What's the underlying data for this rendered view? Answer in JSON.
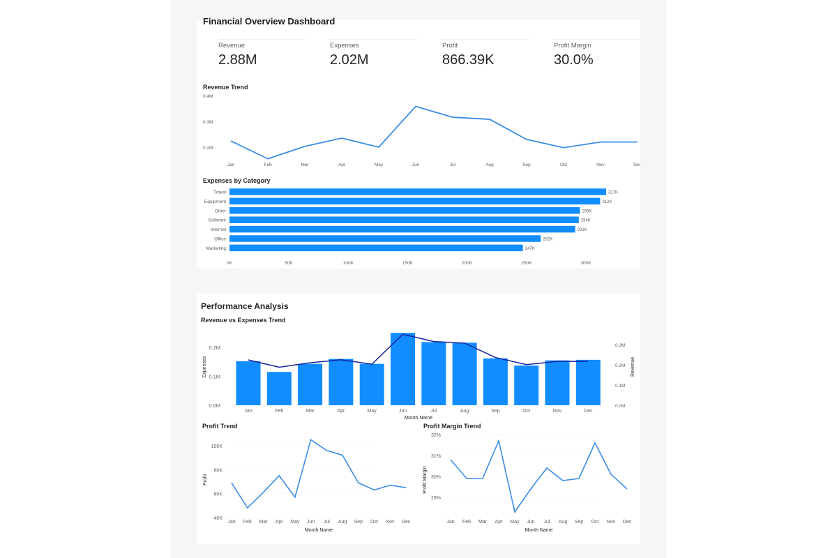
{
  "dashboard": {
    "title": "Financial Overview Dashboard"
  },
  "kpis": [
    {
      "label": "Revenue",
      "value": "2.88M"
    },
    {
      "label": "Expenses",
      "value": "2.02M"
    },
    {
      "label": "Profit",
      "value": "866.39K"
    },
    {
      "label": "Profit Margin",
      "value": "30.0%"
    }
  ],
  "performance": {
    "title": "Performance Analysis"
  },
  "colors": {
    "primary": "#118dff",
    "line": "#3a8de8",
    "dark_line": "#12239e",
    "grid": "#eeeeee"
  },
  "chart_data": [
    {
      "id": "revenue_trend",
      "type": "line",
      "title": "Revenue Trend",
      "x": [
        "Jan",
        "Feb",
        "Mar",
        "Apr",
        "May",
        "Jun",
        "Jul",
        "Aug",
        "Sep",
        "Oct",
        "Nov",
        "Dec"
      ],
      "series": [
        {
          "values": [
            224000,
            155000,
            203000,
            235000,
            200000,
            358000,
            316000,
            308000,
            230000,
            198000,
            220000,
            220000
          ]
        }
      ],
      "yticks": [
        "0.2M",
        "0.3M",
        "0.4M"
      ],
      "ylim": [
        150000,
        420000
      ],
      "grid": false
    },
    {
      "id": "expenses_by_category",
      "type": "bar",
      "orientation": "horizontal",
      "title": "Expenses by Category",
      "categories": [
        "Travel",
        "Equipment",
        "Other",
        "Software",
        "Internet",
        "Office",
        "Marketing"
      ],
      "values": [
        317000,
        312000,
        295000,
        294000,
        291000,
        262000,
        247000
      ],
      "data_labels": [
        "317K",
        "312K",
        "295K",
        "294K",
        "291K",
        "262K",
        "247K"
      ],
      "xticks": [
        "0K",
        "50K",
        "100K",
        "150K",
        "200K",
        "250K",
        "300K"
      ],
      "xlim": [
        0,
        300000
      ]
    },
    {
      "id": "revenue_vs_expenses",
      "type": "bar",
      "title": "Revenue vs Expenses Trend",
      "xlabel": "Month Name",
      "ylabel": "Expenses",
      "y2label": "Revenue",
      "categories": [
        "Jan",
        "Feb",
        "Mar",
        "Apr",
        "May",
        "Jun",
        "Jul",
        "Aug",
        "Sep",
        "Oct",
        "Nov",
        "Dec"
      ],
      "series": [
        {
          "name": "Expenses",
          "values": [
            152000,
            115000,
            143000,
            160000,
            143000,
            250000,
            218000,
            216000,
            162000,
            137000,
            155000,
            157000
          ]
        },
        {
          "name": "Revenue",
          "values": [
            224000,
            188000,
            210000,
            225000,
            203000,
            351000,
            315000,
            307000,
            236000,
            201000,
            217000,
            217000
          ]
        }
      ],
      "yticks": [
        "0.0M",
        "0.1M",
        "0.2M"
      ],
      "y2ticks": [
        "0.0M",
        "0.1M",
        "0.2M",
        "0.3M"
      ],
      "ylim": [
        0,
        250000
      ],
      "y2lim": [
        0,
        350000
      ]
    },
    {
      "id": "profit_trend",
      "type": "line",
      "title": "Profit Trend",
      "xlabel": "Month Name",
      "ylabel": "Profit",
      "x": [
        "Jan",
        "Feb",
        "Mar",
        "Apr",
        "May",
        "Jun",
        "Jul",
        "Aug",
        "Sep",
        "Oct",
        "Nov",
        "Dec"
      ],
      "series": [
        {
          "values": [
            69000,
            48000,
            61000,
            75000,
            57000,
            105000,
            96000,
            92000,
            69000,
            63000,
            67000,
            65000
          ]
        }
      ],
      "yticks": [
        "40K",
        "60K",
        "80K",
        "100K"
      ],
      "ylim": [
        40000,
        100000
      ]
    },
    {
      "id": "profit_margin_trend",
      "type": "line",
      "title": "Profit Margin Trend",
      "xlabel": "Month Name",
      "ylabel": "Profit Margin",
      "x": [
        "Jan",
        "Feb",
        "Mar",
        "Apr",
        "May",
        "Jun",
        "Jul",
        "Aug",
        "Sep",
        "Oct",
        "Nov",
        "Dec"
      ],
      "series": [
        {
          "values": [
            30.8,
            29.9,
            29.9,
            31.7,
            28.3,
            29.4,
            30.4,
            29.8,
            29.9,
            31.6,
            30.1,
            29.4
          ]
        }
      ],
      "yticks": [
        "29%",
        "30%",
        "31%",
        "32%"
      ],
      "ylim": [
        29,
        32
      ]
    }
  ]
}
